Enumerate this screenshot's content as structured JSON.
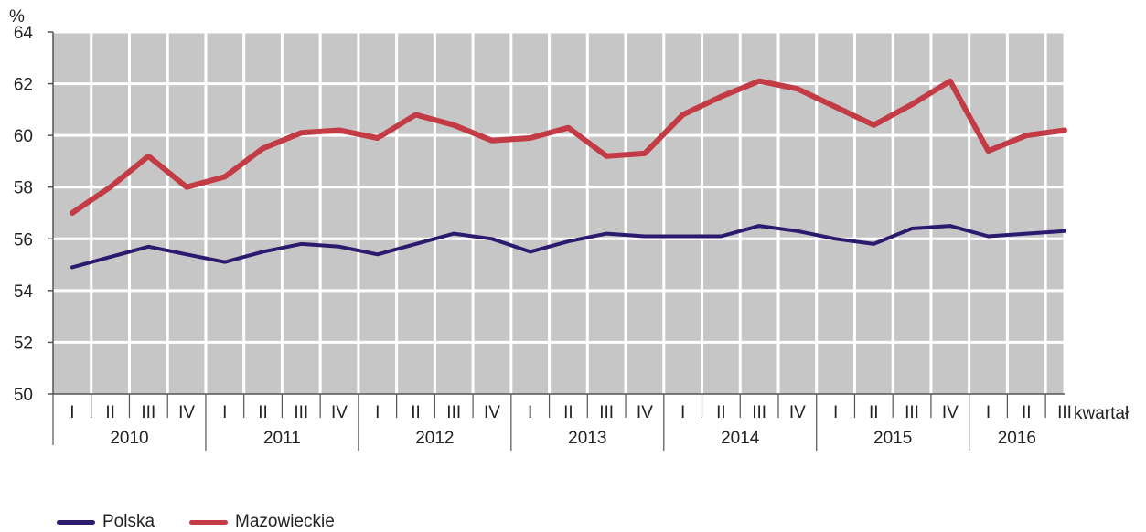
{
  "chart_data": {
    "type": "line",
    "ylabel": "%",
    "xlabel": "kwartał",
    "ylim": [
      50,
      64
    ],
    "yticks": [
      50,
      52,
      54,
      56,
      58,
      60,
      62,
      64
    ],
    "grid": true,
    "legend_position": "bottom-left",
    "quarter_labels": [
      "I",
      "II",
      "III",
      "IV",
      "I",
      "II",
      "III",
      "IV",
      "I",
      "II",
      "III",
      "IV",
      "I",
      "II",
      "III",
      "IV",
      "I",
      "II",
      "III",
      "IV",
      "I",
      "II",
      "III",
      "IV",
      "I",
      "II",
      "III"
    ],
    "years": [
      {
        "label": "2010",
        "quarters": 4
      },
      {
        "label": "2011",
        "quarters": 4
      },
      {
        "label": "2012",
        "quarters": 4
      },
      {
        "label": "2013",
        "quarters": 4
      },
      {
        "label": "2014",
        "quarters": 4
      },
      {
        "label": "2015",
        "quarters": 4
      },
      {
        "label": "2016",
        "quarters": 3
      }
    ],
    "series": [
      {
        "name": "Polska",
        "color": "#2b1a6e",
        "values": [
          54.9,
          55.3,
          55.7,
          55.4,
          55.1,
          55.5,
          55.8,
          55.7,
          55.4,
          55.8,
          56.2,
          56.0,
          55.5,
          55.9,
          56.2,
          56.1,
          56.1,
          56.1,
          56.5,
          56.3,
          56.0,
          55.8,
          56.4,
          56.5,
          56.1,
          56.2,
          56.3
        ]
      },
      {
        "name": "Mazowieckie",
        "color": "#c23b45",
        "values": [
          57.0,
          58.0,
          59.2,
          58.0,
          58.4,
          59.5,
          60.1,
          60.2,
          59.9,
          60.8,
          60.4,
          59.8,
          59.9,
          60.3,
          59.2,
          59.3,
          60.8,
          61.5,
          62.1,
          61.8,
          61.1,
          60.4,
          61.2,
          62.1,
          59.4,
          60.0,
          60.2
        ]
      }
    ]
  }
}
